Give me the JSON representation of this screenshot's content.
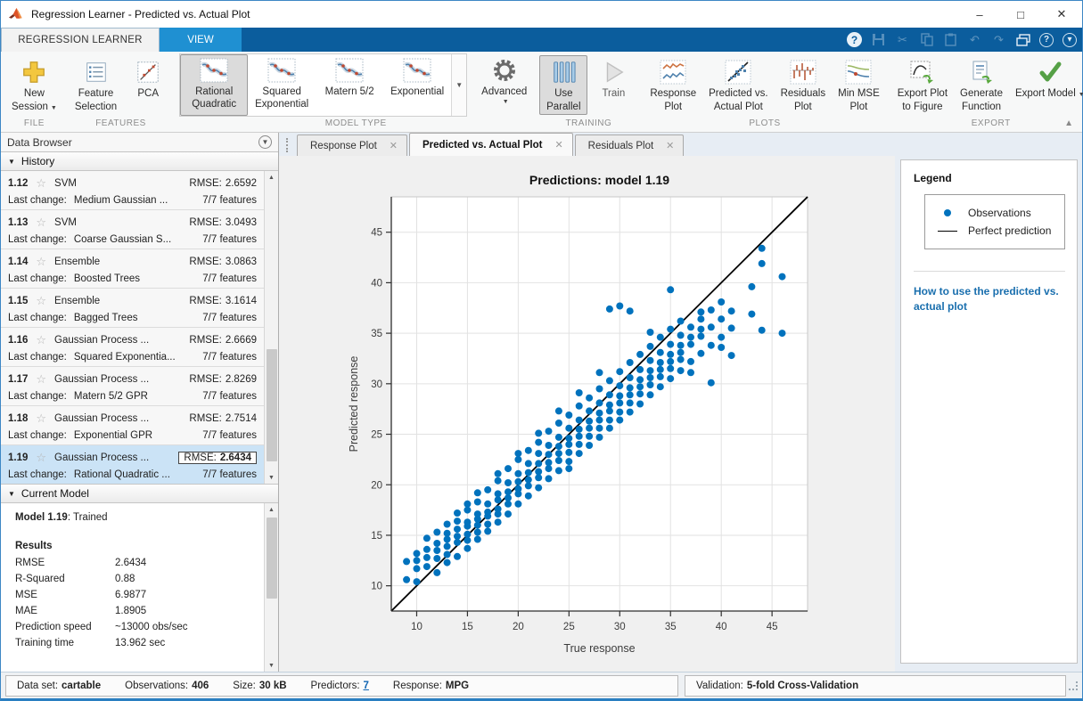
{
  "window": {
    "title": "Regression Learner - Predicted vs. Actual Plot"
  },
  "ribbon": {
    "tabs": {
      "regression": "REGRESSION LEARNER",
      "view": "VIEW"
    },
    "group_labels": {
      "file": "FILE",
      "features": "FEATURES",
      "model_type": "MODEL TYPE",
      "training": "TRAINING",
      "plots": "PLOTS",
      "export": "EXPORT"
    },
    "file": {
      "new_session": {
        "line1": "New",
        "line2": "Session"
      }
    },
    "features": {
      "feature_selection": {
        "line1": "Feature",
        "line2": "Selection"
      },
      "pca": "PCA"
    },
    "model_gallery": [
      {
        "line1": "Rational",
        "line2": "Quadratic",
        "selected": true
      },
      {
        "line1": "Squared",
        "line2": "Exponential",
        "selected": false
      },
      {
        "line1": "Matern 5/2",
        "line2": "",
        "selected": false
      },
      {
        "line1": "Exponential",
        "line2": "",
        "selected": false
      }
    ],
    "advanced": "Advanced",
    "training": {
      "use_parallel": {
        "line1": "Use",
        "line2": "Parallel",
        "pressed": true
      },
      "train": "Train"
    },
    "plots_buttons": [
      {
        "line1": "Response",
        "line2": "Plot"
      },
      {
        "line1": "Predicted vs.",
        "line2": "Actual Plot"
      },
      {
        "line1": "Residuals",
        "line2": "Plot"
      },
      {
        "line1": "Min MSE",
        "line2": "Plot"
      }
    ],
    "export_buttons": [
      {
        "line1": "Export Plot",
        "line2": "to Figure"
      },
      {
        "line1": "Generate",
        "line2": "Function"
      },
      {
        "line1": "Export",
        "line2": "Model"
      }
    ]
  },
  "data_browser": {
    "title": "Data Browser",
    "history_title": "History",
    "rmse_label": "RMSE:",
    "last_change_label": "Last change:",
    "history": [
      {
        "id": "1.12",
        "type": "SVM",
        "rmse": "2.6592",
        "last_change": "Medium Gaussian ...",
        "features": "7/7 features",
        "selected": false
      },
      {
        "id": "1.13",
        "type": "SVM",
        "rmse": "3.0493",
        "last_change": "Coarse Gaussian S...",
        "features": "7/7 features",
        "selected": false
      },
      {
        "id": "1.14",
        "type": "Ensemble",
        "rmse": "3.0863",
        "last_change": "Boosted Trees",
        "features": "7/7 features",
        "selected": false
      },
      {
        "id": "1.15",
        "type": "Ensemble",
        "rmse": "3.1614",
        "last_change": "Bagged Trees",
        "features": "7/7 features",
        "selected": false
      },
      {
        "id": "1.16",
        "type": "Gaussian Process ...",
        "rmse": "2.6669",
        "last_change": "Squared Exponentia...",
        "features": "7/7 features",
        "selected": false
      },
      {
        "id": "1.17",
        "type": "Gaussian Process ...",
        "rmse": "2.8269",
        "last_change": "Matern 5/2 GPR",
        "features": "7/7 features",
        "selected": false
      },
      {
        "id": "1.18",
        "type": "Gaussian Process ...",
        "rmse": "2.7514",
        "last_change": "Exponential GPR",
        "features": "7/7 features",
        "selected": false
      },
      {
        "id": "1.19",
        "type": "Gaussian Process ...",
        "rmse": "2.6434",
        "last_change": "Rational Quadratic ...",
        "features": "7/7 features",
        "selected": true
      }
    ],
    "current_model_title": "Current Model",
    "current_model": {
      "model_label": "Model 1.19",
      "model_state": ": Trained",
      "results_label": "Results",
      "rows": [
        [
          "RMSE",
          "2.6434"
        ],
        [
          "R-Squared",
          "0.88"
        ],
        [
          "MSE",
          "6.9877"
        ],
        [
          "MAE",
          "1.8905"
        ],
        [
          "Prediction speed",
          "~13000 obs/sec"
        ],
        [
          "Training time",
          "13.962 sec"
        ]
      ]
    }
  },
  "document": {
    "tabs": [
      {
        "label": "Response Plot",
        "active": false
      },
      {
        "label": "Predicted vs. Actual Plot",
        "active": true
      },
      {
        "label": "Residuals Plot",
        "active": false
      }
    ]
  },
  "legend_panel": {
    "title": "Legend",
    "observations": "Observations",
    "perfect": "Perfect prediction",
    "help_link": "How to use the predicted vs. actual plot"
  },
  "status_bar": {
    "fields": [
      {
        "label": "Data set:",
        "value": "cartable"
      },
      {
        "label": "Observations:",
        "value": "406"
      },
      {
        "label": "Size:",
        "value": "30 kB"
      },
      {
        "label": "Predictors:",
        "value": "7",
        "link": true
      },
      {
        "label": "Response:",
        "value": "MPG"
      }
    ],
    "validation_label": "Validation:",
    "validation_value": "5-fold Cross-Validation"
  },
  "colors": {
    "accent_blue": "#0072BD",
    "marker": "#0072BD",
    "perfect_line": "#000000",
    "grid": "#e2e2e2",
    "figure_bg": "#f0f0f0",
    "selected_history_bg": "#cbe3f6",
    "tabstrip_blue": "#0b5d9d",
    "view_tab_blue": "#1f90d2"
  },
  "chart_data": {
    "type": "scatter",
    "title": "Predictions: model 1.19",
    "xlabel": "True response",
    "ylabel": "Predicted response",
    "xlim": [
      7.5,
      48.5
    ],
    "ylim": [
      7.5,
      48.5
    ],
    "xticks": [
      10,
      15,
      20,
      25,
      30,
      35,
      40,
      45
    ],
    "yticks": [
      10,
      15,
      20,
      25,
      30,
      35,
      40,
      45
    ],
    "grid": true,
    "legend": [
      "Observations",
      "Perfect prediction"
    ],
    "legend_position": "right-panel",
    "line": {
      "x": [
        7.5,
        48.5
      ],
      "y": [
        7.5,
        48.5
      ]
    },
    "columns_note": "true response (x, integer MPG) -> list of predicted responses (y)",
    "columns": {
      "9": [
        12.4,
        10.6
      ],
      "10": [
        10.4,
        11.7,
        12.5,
        13.2
      ],
      "11": [
        11.9,
        12.8,
        13.6,
        14.7
      ],
      "12": [
        11.3,
        12.7,
        13.5,
        14.2,
        15.3
      ],
      "13": [
        12.3,
        13.1,
        13.9,
        14.6,
        15.2,
        16.1
      ],
      "14": [
        12.9,
        14.3,
        14.9,
        15.6,
        16.4,
        17.2
      ],
      "15": [
        13.7,
        14.5,
        15.1,
        15.9,
        16.3,
        17.5,
        18.1
      ],
      "16": [
        14.6,
        15.3,
        16.0,
        16.6,
        17.1,
        18.3,
        19.2
      ],
      "17": [
        15.4,
        16.1,
        16.9,
        17.3,
        18.1,
        19.5
      ],
      "18": [
        16.3,
        17.1,
        17.6,
        18.5,
        19.1,
        20.4,
        21.1
      ],
      "19": [
        17.1,
        18.1,
        18.7,
        19.3,
        20.2,
        21.6
      ],
      "20": [
        18.1,
        19.1,
        19.6,
        20.3,
        21.1,
        22.5,
        23.1
      ],
      "21": [
        18.9,
        19.9,
        20.5,
        21.2,
        22.1,
        23.4
      ],
      "22": [
        19.7,
        20.7,
        21.3,
        22.1,
        23.1,
        24.2,
        25.1
      ],
      "23": [
        20.6,
        21.6,
        22.2,
        23.0,
        23.9,
        25.3
      ],
      "24": [
        21.4,
        22.4,
        23.1,
        23.8,
        24.7,
        26.1,
        27.3
      ],
      "25": [
        21.6,
        22.3,
        23.2,
        24.0,
        24.6,
        25.6,
        26.9
      ],
      "26": [
        23.1,
        24.0,
        24.8,
        25.5,
        26.4,
        27.8,
        29.1
      ],
      "27": [
        23.9,
        24.8,
        25.6,
        26.3,
        27.3,
        28.6
      ],
      "28": [
        24.7,
        25.6,
        26.4,
        27.1,
        28.1,
        29.5,
        31.1
      ],
      "29": [
        25.6,
        26.4,
        27.3,
        27.9,
        28.9,
        30.3,
        37.4
      ],
      "30": [
        26.4,
        27.2,
        28.1,
        28.8,
        29.8,
        31.2,
        37.7
      ],
      "31": [
        27.2,
        28.1,
        28.9,
        29.6,
        30.6,
        32.1,
        37.2
      ],
      "32": [
        28.0,
        29.0,
        29.7,
        30.4,
        31.4,
        32.9
      ],
      "33": [
        28.9,
        29.9,
        30.6,
        31.3,
        32.3,
        33.7,
        35.1
      ],
      "34": [
        29.7,
        30.7,
        31.4,
        32.1,
        33.1,
        34.6
      ],
      "35": [
        30.5,
        31.5,
        32.2,
        32.9,
        33.9,
        35.4,
        39.3
      ],
      "36": [
        31.3,
        32.4,
        33.1,
        33.8,
        34.8,
        36.2
      ],
      "37": [
        31.1,
        32.2,
        33.9,
        34.6,
        35.6
      ],
      "38": [
        33.0,
        34.7,
        35.4,
        36.4,
        37.1
      ],
      "39": [
        30.1,
        33.8,
        35.6,
        37.3
      ],
      "40": [
        33.6,
        34.6,
        36.4,
        38.1
      ],
      "41": [
        32.8,
        35.5,
        37.2
      ],
      "43": [
        36.9,
        39.6
      ],
      "44": [
        35.3,
        41.9,
        43.4
      ],
      "46": [
        35.0,
        40.6
      ]
    }
  }
}
